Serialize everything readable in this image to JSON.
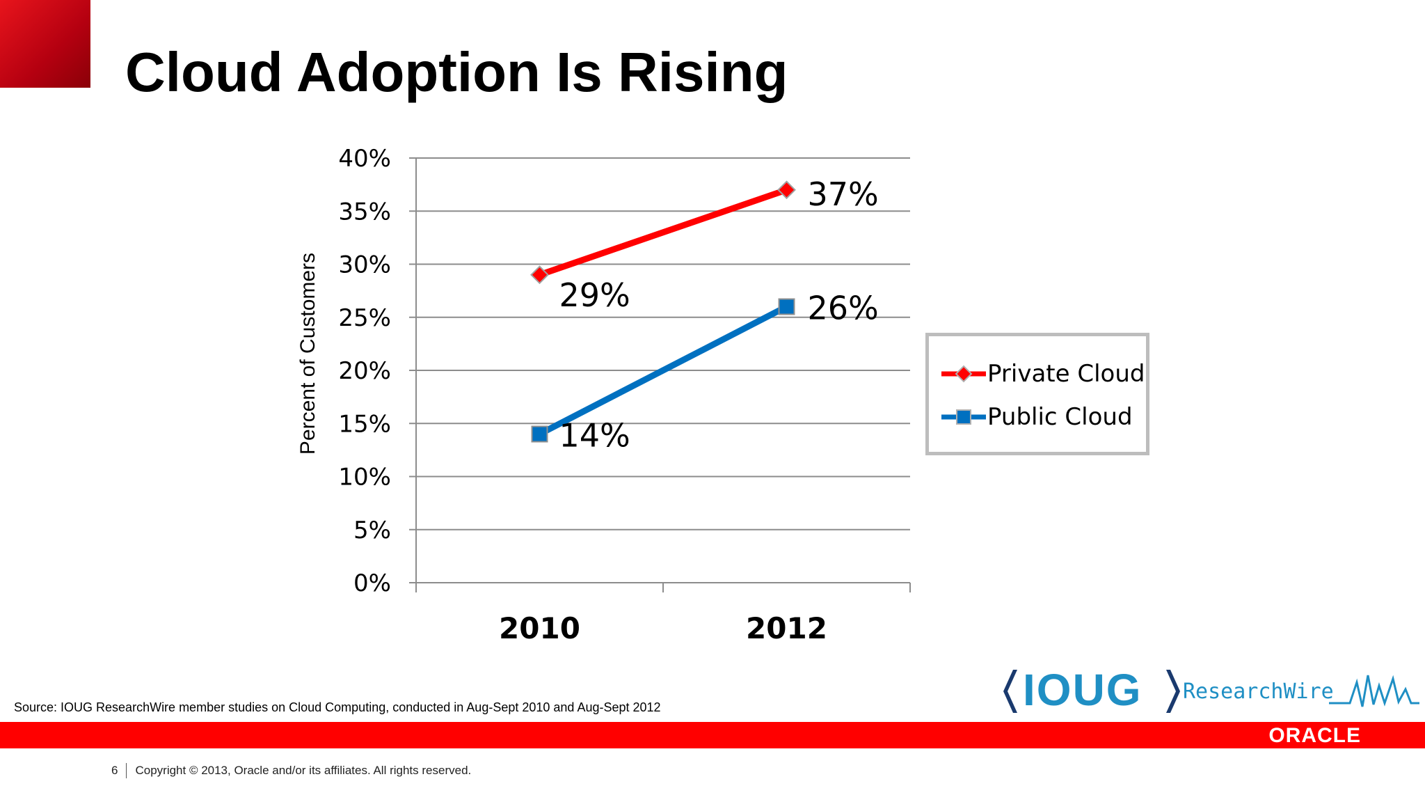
{
  "slide": {
    "title": "Cloud Adoption Is Rising",
    "source": "Source: IOUG ResearchWire member studies on Cloud Computing, conducted in Aug-Sept 2010 and Aug-Sept 2012",
    "page_number": "6",
    "copyright": "Copyright © 2013, Oracle and/or its affiliates. All rights reserved.",
    "accent_color": "#ff0000"
  },
  "logos": {
    "ioug": "IOUG",
    "researchwire": "ResearchWire",
    "oracle": "ORACLE"
  },
  "chart_data": {
    "type": "line",
    "title": "",
    "xlabel": "",
    "ylabel": "Percent of Customers",
    "categories": [
      "2010",
      "2012"
    ],
    "ylim": [
      0,
      40
    ],
    "yticks": [
      "0%",
      "5%",
      "10%",
      "15%",
      "20%",
      "25%",
      "30%",
      "35%",
      "40%"
    ],
    "ytick_values": [
      0,
      5,
      10,
      15,
      20,
      25,
      30,
      35,
      40
    ],
    "grid": true,
    "legend": "right",
    "series": [
      {
        "name": "Private Cloud",
        "values": [
          29,
          37
        ],
        "labels": [
          "29%",
          "37%"
        ],
        "color": "#ff0000",
        "marker": "diamond"
      },
      {
        "name": "Public Cloud",
        "values": [
          14,
          26
        ],
        "labels": [
          "14%",
          "26%"
        ],
        "color": "#0070c0",
        "marker": "square"
      }
    ]
  }
}
